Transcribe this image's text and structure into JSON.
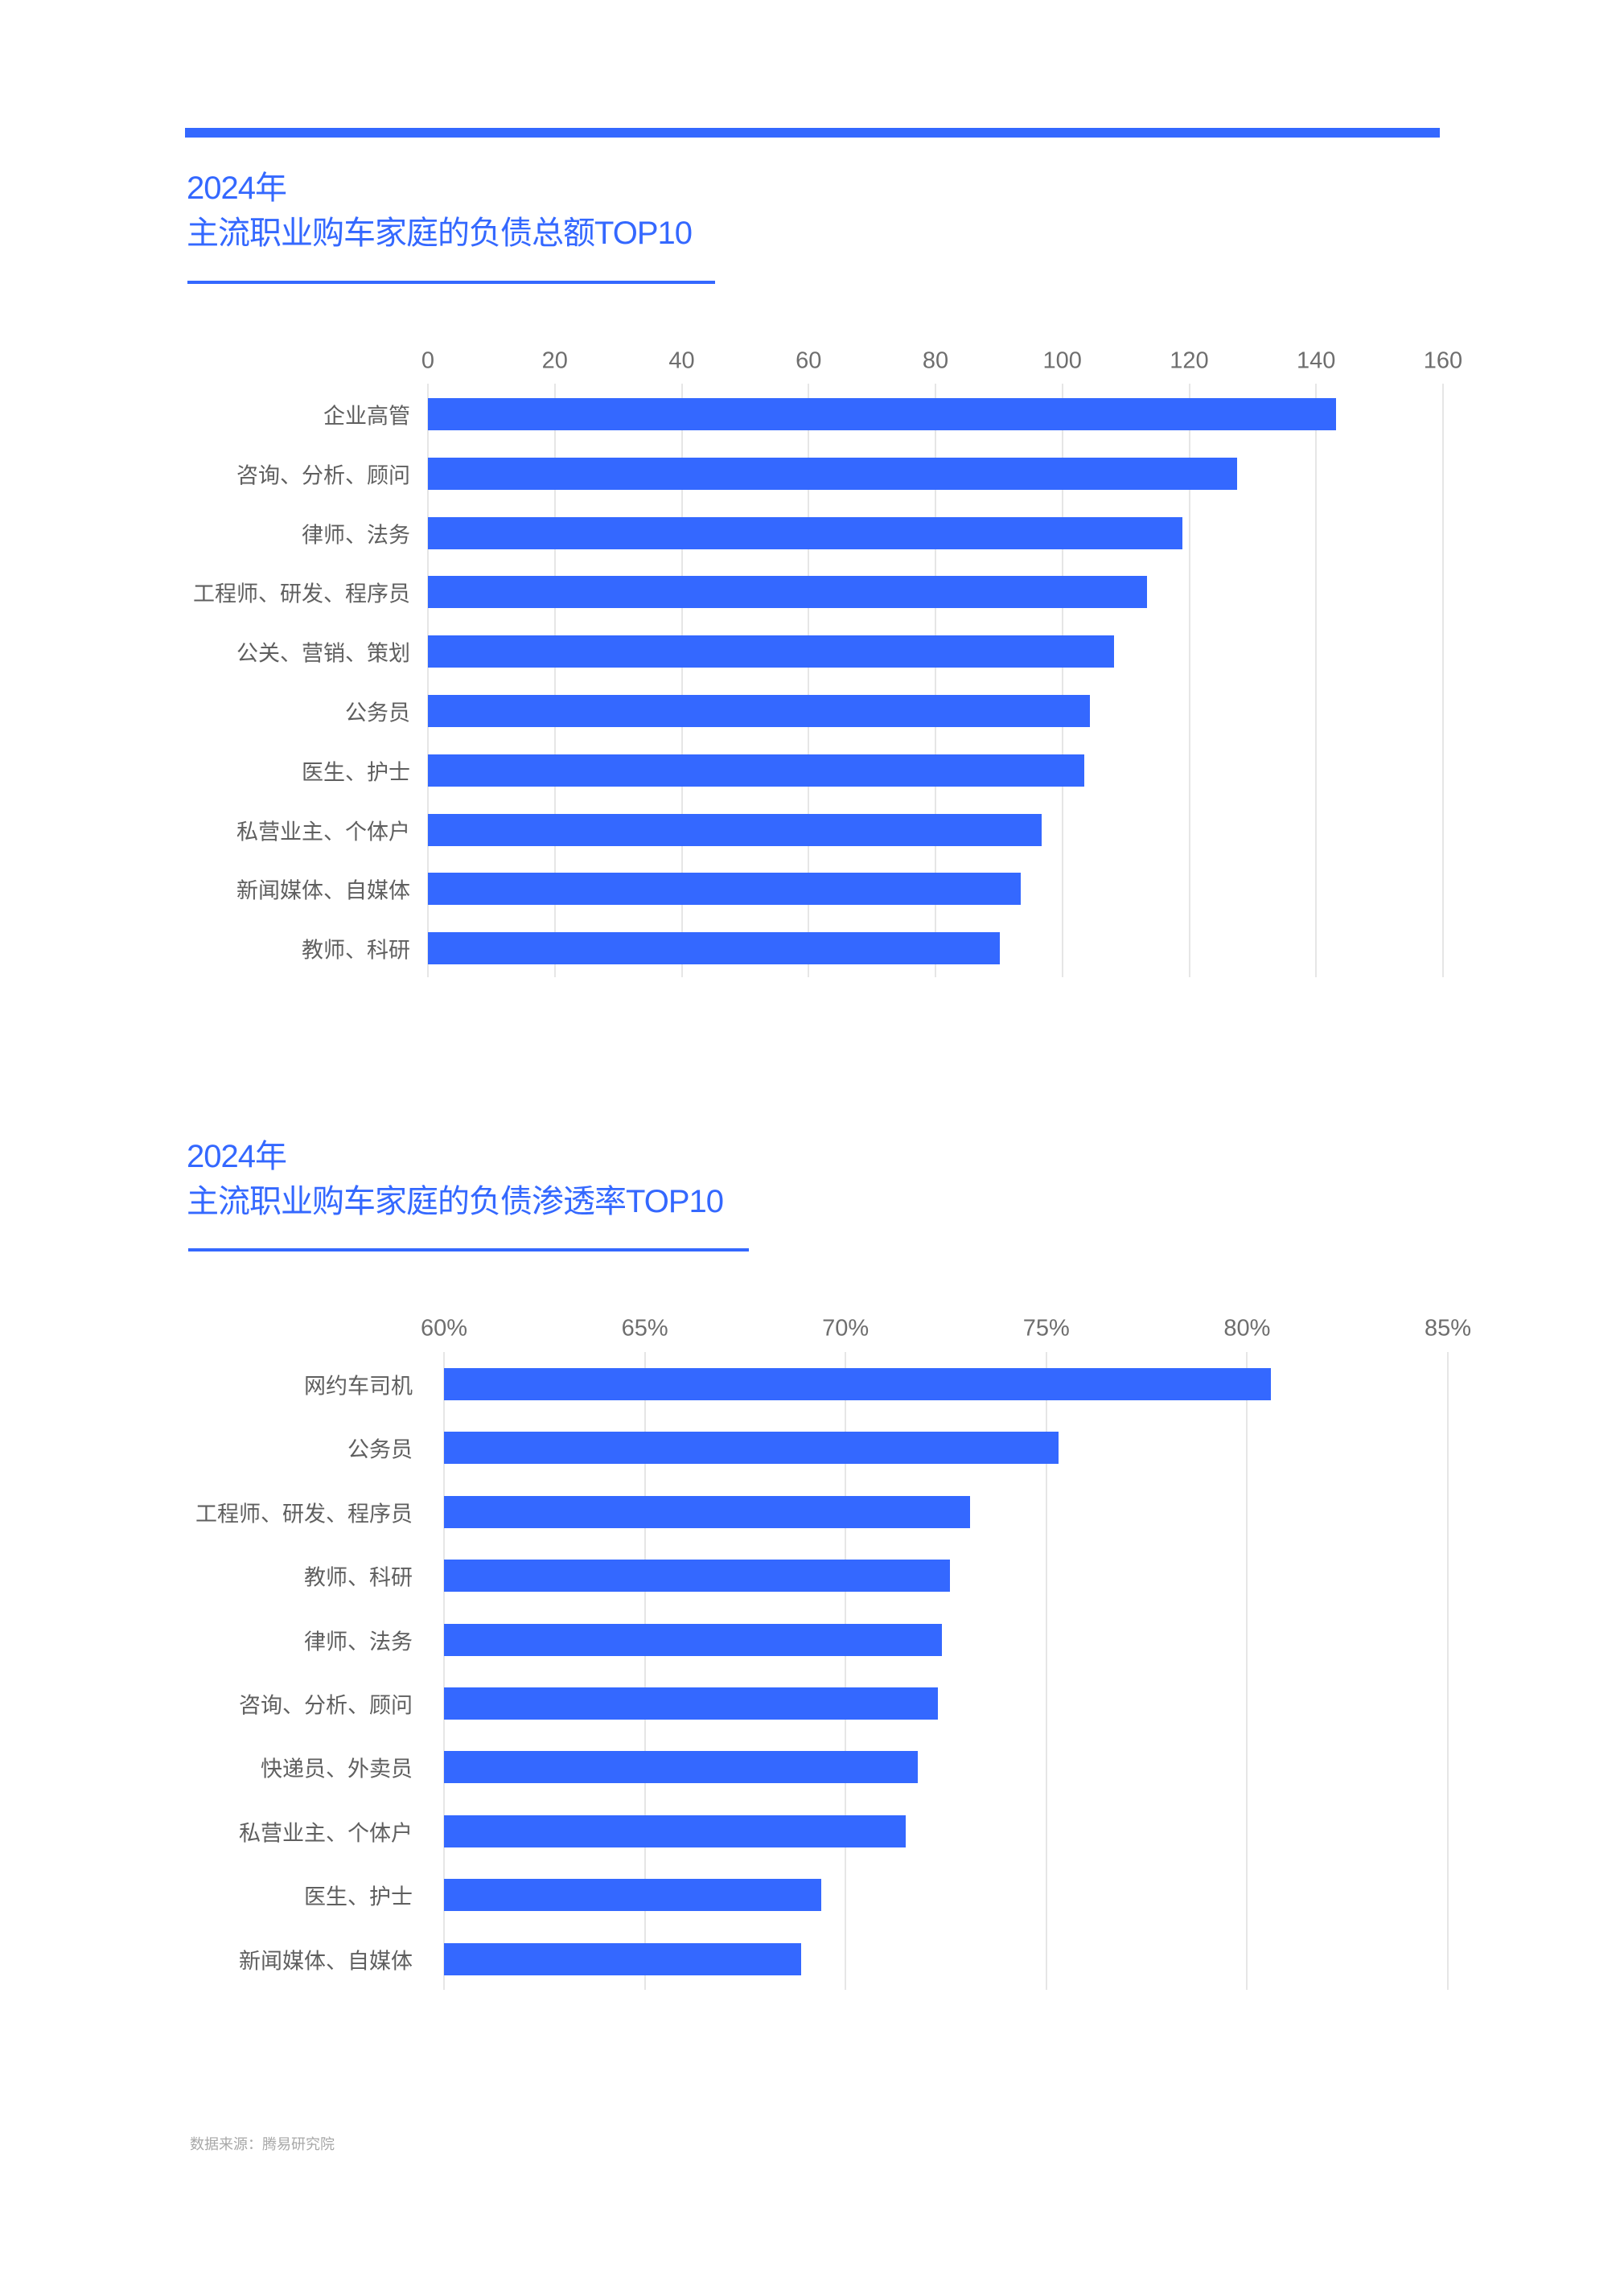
{
  "page": {
    "accent_color": "#3468ff",
    "footer": "数据来源：腾易研究院"
  },
  "chart1": {
    "title_line1": "2024年",
    "title_line2": "主流职业购车家庭的负债总额TOP10"
  },
  "chart2": {
    "title_line1": "2024年",
    "title_line2": "主流职业购车家庭的负债渗透率TOP10"
  },
  "chart_data": [
    {
      "type": "bar",
      "orientation": "horizontal",
      "title": "2024年 主流职业购车家庭的负债总额TOP10",
      "xlabel": "",
      "ylabel": "",
      "xlim": [
        0,
        160
      ],
      "tick_labels": [
        "0",
        "20",
        "40",
        "60",
        "80",
        "100",
        "120",
        "140",
        "160"
      ],
      "tick_values": [
        0,
        20,
        40,
        60,
        80,
        100,
        120,
        140,
        160
      ],
      "axis_position": "top",
      "grid": true,
      "legend": null,
      "categories": [
        "企业高管",
        "咨询、分析、顾问",
        "律师、法务",
        "工程师、研发、程序员",
        "公关、营销、策划",
        "公务员",
        "医生、护士",
        "私营业主、个体户",
        "新闻媒体、自媒体",
        "教师、科研"
      ],
      "values": [
        143.1,
        127.6,
        118.9,
        113.4,
        108.1,
        104.4,
        103.5,
        96.7,
        93.5,
        90.2
      ],
      "bar_color": "#3468ff"
    },
    {
      "type": "bar",
      "orientation": "horizontal",
      "title": "2024年 主流职业购车家庭的负债渗透率TOP10",
      "xlabel": "",
      "ylabel": "",
      "xlim": [
        60,
        85
      ],
      "tick_labels": [
        "60%",
        "65%",
        "70%",
        "75%",
        "80%",
        "85%"
      ],
      "tick_values": [
        60,
        65,
        70,
        75,
        80,
        85
      ],
      "axis_position": "top",
      "grid": true,
      "legend": null,
      "unit": "%",
      "categories": [
        "网约车司机",
        "公务员",
        "工程师、研发、程序员",
        "教师、科研",
        "律师、法务",
        "咨询、分析、顾问",
        "快递员、外卖员",
        "私营业主、个体户",
        "医生、护士",
        "新闻媒体、自媒体"
      ],
      "values": [
        80.6,
        75.3,
        73.1,
        72.6,
        72.4,
        72.3,
        71.8,
        71.5,
        69.4,
        68.9
      ],
      "bar_color": "#3468ff"
    }
  ]
}
